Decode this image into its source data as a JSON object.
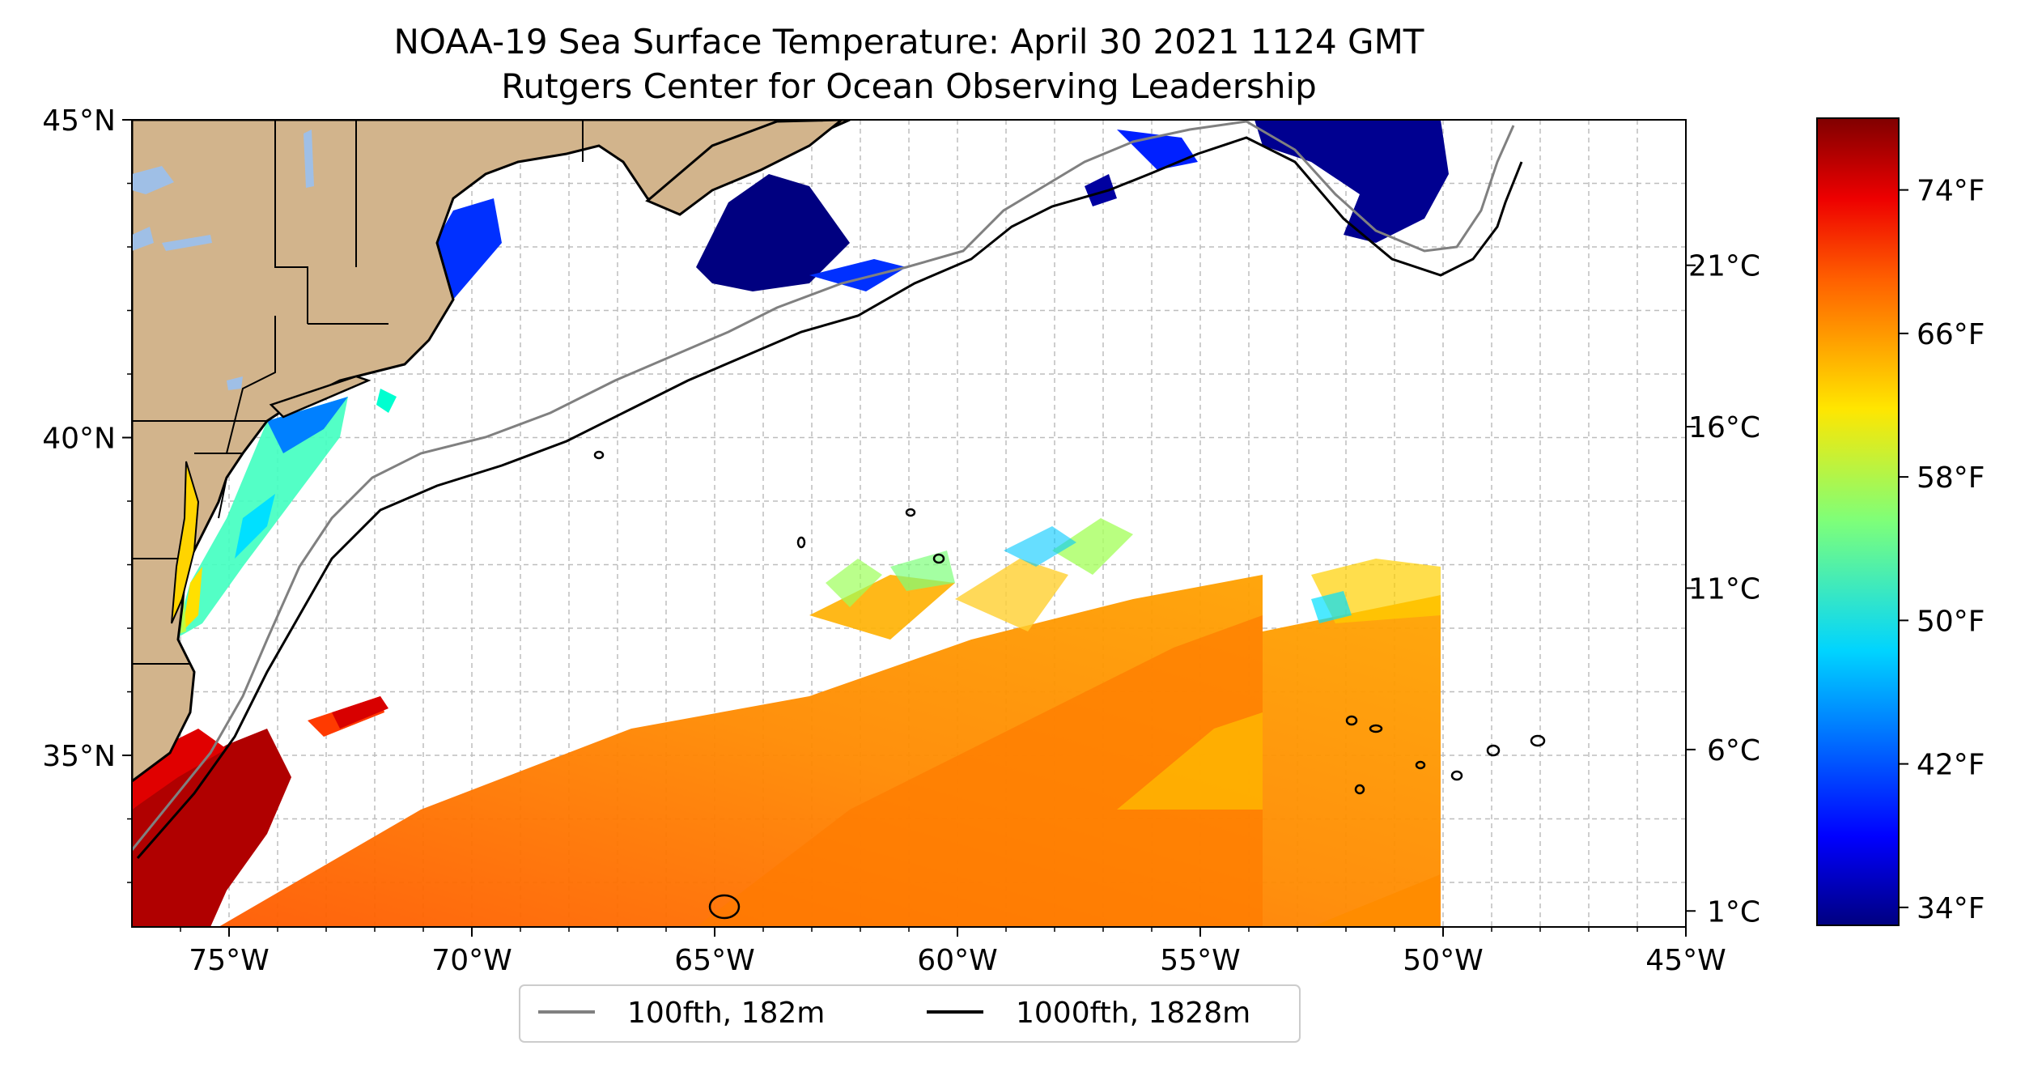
{
  "title": {
    "line1": "NOAA-19 Sea Surface Temperature: April 30 2021 1124 GMT",
    "line2": "Rutgers Center for Ocean Observing Leadership"
  },
  "map": {
    "lon_range": [
      -77,
      -45
    ],
    "lat_range": [
      32.3,
      45
    ],
    "lon_ticks": [
      "75°W",
      "70°W",
      "65°W",
      "60°W",
      "55°W",
      "50°W",
      "45°W"
    ],
    "lat_ticks": [
      "45°N",
      "40°N",
      "35°N"
    ],
    "grid": true,
    "land_color": "#d2b48c",
    "lake_color": "#9fbfe6",
    "contour_100_color": "#808080",
    "contour_1000_color": "#000000"
  },
  "legend": {
    "placement": "bottom-center",
    "items": [
      {
        "label": "100fth, 182m",
        "color": "#808080"
      },
      {
        "label": "1000fth, 1828m",
        "color": "#000000"
      }
    ]
  },
  "colorbar": {
    "colormap": "jet",
    "celsius_labels": [
      "21°C",
      "16°C",
      "11°C",
      "6°C",
      "1°C"
    ],
    "fahrenheit_labels": [
      "74°F",
      "66°F",
      "58°F",
      "50°F",
      "42°F",
      "34°F"
    ]
  },
  "chart_data": {
    "type": "heatmap",
    "title": "NOAA-19 Sea Surface Temperature: April 30 2021 1124 GMT",
    "subtitle": "Rutgers Center for Ocean Observing Leadership",
    "x_range": [
      -77,
      -45
    ],
    "y_range": [
      32.3,
      45
    ],
    "x_ticks": [
      -75,
      -70,
      -65,
      -60,
      -55,
      -50,
      -45
    ],
    "y_ticks": [
      45,
      40,
      35
    ],
    "colorbar_celsius": [
      21,
      16,
      11,
      6,
      1
    ],
    "colorbar_fahrenheit": [
      74,
      66,
      58,
      50,
      42,
      34
    ],
    "colorbar_range_f": [
      33,
      78
    ],
    "legend": [
      "100fth, 182m",
      "1000fth, 1828m"
    ],
    "grid": true
  }
}
